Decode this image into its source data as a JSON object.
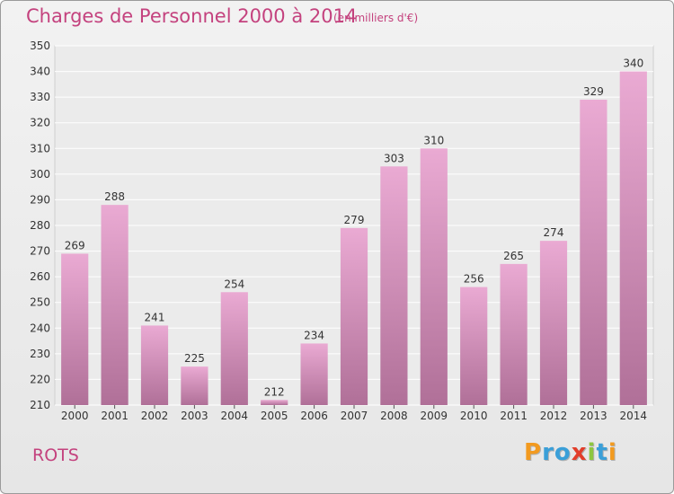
{
  "title": "Charges de Personnel 2000 à 2014",
  "subtitle": "(en milliers d'€)",
  "commune": "ROTS",
  "logo": {
    "letters": [
      "P",
      "r",
      "o",
      "x",
      "i",
      "t",
      "i"
    ],
    "colors": [
      "#f29a1f",
      "#3a9fd8",
      "#3a9fd8",
      "#e23d2a",
      "#8dc63f",
      "#3a9fd8",
      "#f29a1f"
    ]
  },
  "colors": {
    "bar_light": "#eaaad3",
    "bar_dark": "#b07098",
    "text_accent": "#c4427e"
  },
  "chart_data": {
    "type": "bar",
    "categories": [
      "2000",
      "2001",
      "2002",
      "2003",
      "2004",
      "2005",
      "2006",
      "2007",
      "2008",
      "2009",
      "2010",
      "2011",
      "2012",
      "2013",
      "2014"
    ],
    "values": [
      269,
      288,
      241,
      225,
      254,
      212,
      234,
      279,
      303,
      310,
      256,
      265,
      274,
      329,
      340
    ],
    "ylim": [
      210,
      350
    ],
    "yticks": [
      210,
      220,
      230,
      240,
      250,
      260,
      270,
      280,
      290,
      300,
      310,
      320,
      330,
      340,
      350
    ],
    "grid": true,
    "data_labels": true
  }
}
